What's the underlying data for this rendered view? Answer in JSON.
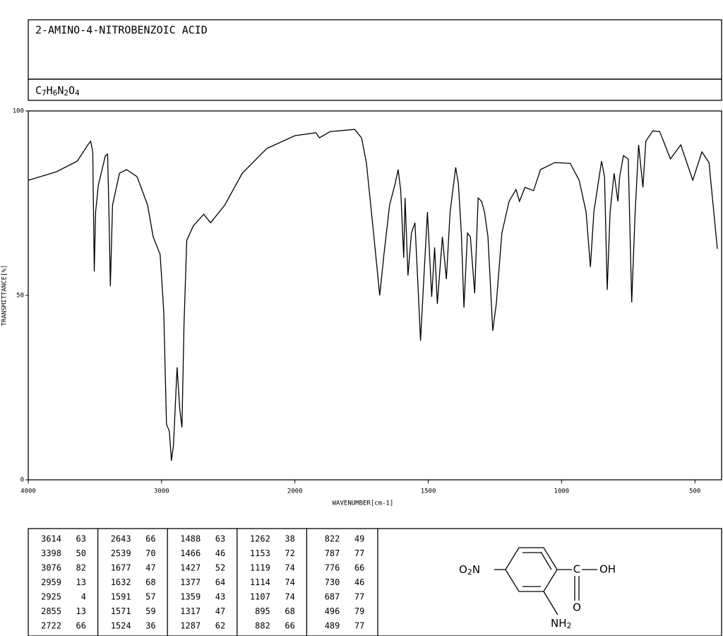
{
  "title": "2-AMINO-4-NITROBENZOIC ACID",
  "formula": [
    "C",
    "7",
    "H",
    "6",
    "N",
    "2",
    "O",
    "4"
  ],
  "chart_data": {
    "type": "line",
    "x_label": "WAVENUMBER[cm-1]",
    "y_label": "TRANSMITTANCE[%]",
    "xlim": [
      4000,
      400
    ],
    "x_scale_break": 2000,
    "xticks": [
      4000,
      3000,
      2000,
      1500,
      1000,
      500
    ],
    "ylim": [
      0,
      100
    ],
    "yticks": [
      0,
      50,
      100
    ],
    "color": "#000000",
    "x": [
      4000,
      3789,
      3632,
      3553,
      3532,
      3516,
      3505,
      3495,
      3474,
      3421,
      3405,
      3395,
      3384,
      3368,
      3316,
      3263,
      3184,
      3105,
      3063,
      3011,
      2984,
      2963,
      2942,
      2926,
      2911,
      2884,
      2863,
      2847,
      2832,
      2811,
      2763,
      2684,
      2632,
      2526,
      2395,
      2211,
      2000,
      1921,
      1908,
      1868,
      1776,
      1750,
      1732,
      1705,
      1682,
      1666,
      1645,
      1624,
      1613,
      1603,
      1592,
      1587,
      1576,
      1563,
      1550,
      1539,
      1529,
      1516,
      1503,
      1487,
      1476,
      1466,
      1447,
      1432,
      1418,
      1397,
      1387,
      1376,
      1366,
      1353,
      1342,
      1326,
      1313,
      1300,
      1289,
      1276,
      1258,
      1245,
      1224,
      1197,
      1171,
      1158,
      1137,
      1105,
      1079,
      1026,
      968,
      934,
      908,
      892,
      879,
      850,
      839,
      829,
      818,
      803,
      789,
      782,
      768,
      750,
      737,
      724,
      711,
      695,
      684,
      658,
      632,
      592,
      553,
      508,
      474,
      447,
      416
    ],
    "values": [
      81.2,
      83.5,
      86.4,
      90.8,
      91.8,
      88.9,
      56.5,
      72.6,
      79.9,
      87.9,
      88.3,
      72.6,
      52.5,
      74.5,
      83.1,
      84.1,
      82.2,
      74.5,
      65.9,
      61.1,
      45.8,
      15.1,
      13.2,
      5.2,
      9.4,
      30.5,
      19.0,
      14.2,
      42.0,
      64.9,
      68.8,
      72.0,
      69.7,
      74.5,
      83.1,
      89.8,
      93.3,
      94.1,
      92.7,
      94.4,
      95.0,
      92.7,
      86.0,
      66.9,
      50.0,
      61.1,
      74.5,
      80.3,
      84.1,
      78.4,
      60.2,
      76.4,
      55.4,
      66.9,
      69.7,
      53.4,
      37.7,
      55.4,
      72.6,
      49.6,
      63.0,
      47.7,
      65.9,
      54.4,
      72.6,
      84.7,
      80.3,
      66.9,
      46.7,
      66.9,
      65.9,
      50.6,
      76.4,
      75.5,
      72.6,
      65.9,
      40.4,
      47.7,
      66.9,
      75.5,
      78.7,
      75.5,
      79.3,
      78.4,
      84.1,
      86.0,
      85.8,
      81.2,
      72.6,
      57.7,
      72.6,
      86.4,
      82.2,
      51.5,
      72.6,
      83.1,
      75.5,
      82.2,
      87.9,
      87.0,
      48.1,
      72.6,
      90.8,
      79.3,
      91.8,
      94.6,
      94.4,
      87.0,
      90.8,
      81.2,
      88.9,
      86.0,
      62.6
    ]
  },
  "peaks": [
    [
      [
        "3614",
        "63"
      ],
      [
        "3398",
        "50"
      ],
      [
        "3076",
        "82"
      ],
      [
        "2959",
        "13"
      ],
      [
        "2925",
        "4"
      ],
      [
        "2855",
        "13"
      ],
      [
        "2722",
        "66"
      ]
    ],
    [
      [
        "2643",
        "66"
      ],
      [
        "2539",
        "70"
      ],
      [
        "1677",
        "47"
      ],
      [
        "1632",
        "68"
      ],
      [
        "1591",
        "57"
      ],
      [
        "1571",
        "59"
      ],
      [
        "1524",
        "36"
      ]
    ],
    [
      [
        "1488",
        "63"
      ],
      [
        "1466",
        "46"
      ],
      [
        "1427",
        "52"
      ],
      [
        "1377",
        "64"
      ],
      [
        "1359",
        "43"
      ],
      [
        "1317",
        "47"
      ],
      [
        "1287",
        "62"
      ]
    ],
    [
      [
        "1262",
        "38"
      ],
      [
        "1153",
        "72"
      ],
      [
        "1119",
        "74"
      ],
      [
        "1114",
        "74"
      ],
      [
        "1107",
        "74"
      ],
      [
        "895",
        "68"
      ],
      [
        "882",
        "66"
      ]
    ],
    [
      [
        "822",
        "49"
      ],
      [
        "787",
        "77"
      ],
      [
        "776",
        "66"
      ],
      [
        "730",
        "46"
      ],
      [
        "687",
        "77"
      ],
      [
        "496",
        "79"
      ],
      [
        "489",
        "77"
      ]
    ]
  ],
  "structure": {
    "nitro": [
      "O",
      "2",
      "N"
    ],
    "carbon": "C",
    "hydroxyl": "OH",
    "oxygen": "O",
    "amine": [
      "NH",
      "2"
    ]
  }
}
